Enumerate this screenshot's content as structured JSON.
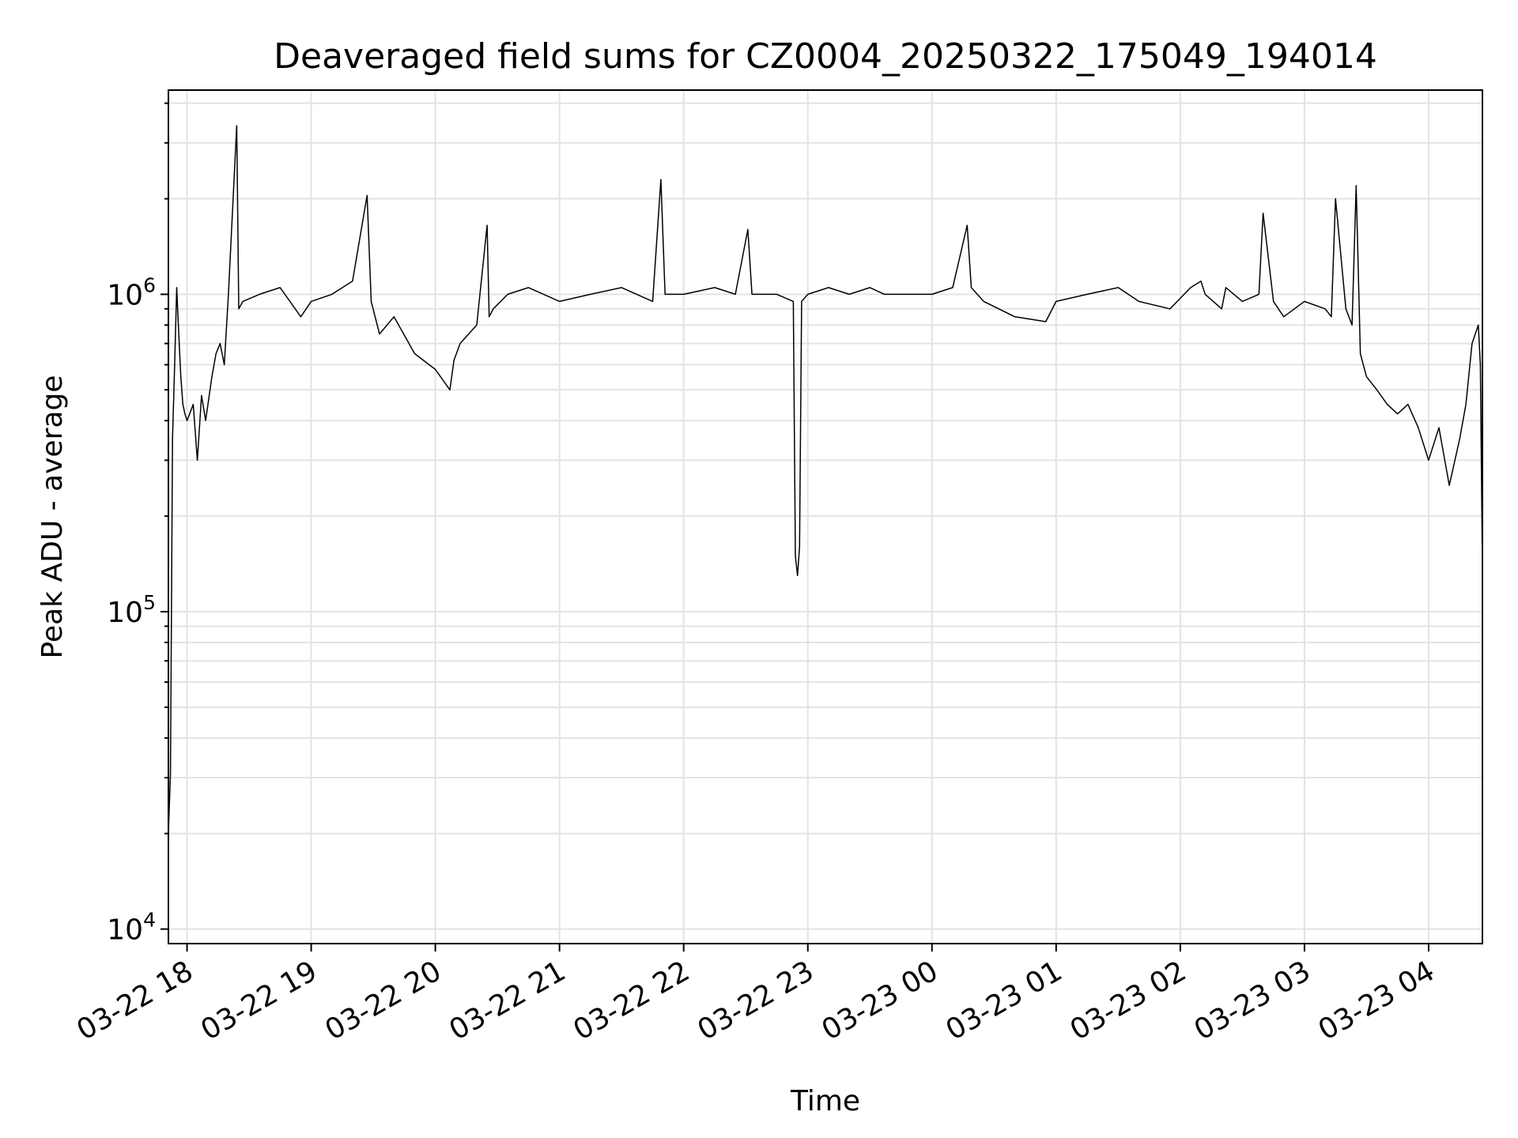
{
  "chart_data": {
    "type": "line",
    "title": "Deaveraged field sums for CZ0004_20250322_175049_194014",
    "xlabel": "Time",
    "ylabel": "Peak ADU - average",
    "xlim": [
      "2025-03-22 17:51",
      "2025-03-23 04:26"
    ],
    "ylim": [
      9000,
      4400000
    ],
    "y_scale": "log",
    "grid": true,
    "line_color": "#000000",
    "x_ticks": [
      {
        "t": "2025-03-22 18:00",
        "label": "03-22 18"
      },
      {
        "t": "2025-03-22 19:00",
        "label": "03-22 19"
      },
      {
        "t": "2025-03-22 20:00",
        "label": "03-22 20"
      },
      {
        "t": "2025-03-22 21:00",
        "label": "03-22 21"
      },
      {
        "t": "2025-03-22 22:00",
        "label": "03-22 22"
      },
      {
        "t": "2025-03-22 23:00",
        "label": "03-22 23"
      },
      {
        "t": "2025-03-23 00:00",
        "label": "03-23 00"
      },
      {
        "t": "2025-03-23 01:00",
        "label": "03-23 01"
      },
      {
        "t": "2025-03-23 02:00",
        "label": "03-23 02"
      },
      {
        "t": "2025-03-23 03:00",
        "label": "03-23 03"
      },
      {
        "t": "2025-03-23 04:00",
        "label": "03-23 04"
      }
    ],
    "y_ticks": [
      {
        "value": 10000,
        "base": "10",
        "exp": "4"
      },
      {
        "value": 100000,
        "base": "10",
        "exp": "5"
      },
      {
        "value": 1000000,
        "base": "10",
        "exp": "6"
      }
    ],
    "series": [
      {
        "x": [
          "2025-03-22 17:51",
          "2025-03-22 17:52",
          "2025-03-22 17:53",
          "2025-03-22 17:54",
          "2025-03-22 17:55",
          "2025-03-22 17:56",
          "2025-03-22 17:57",
          "2025-03-22 17:58",
          "2025-03-22 17:59",
          "2025-03-22 18:00",
          "2025-03-22 18:03",
          "2025-03-22 18:05",
          "2025-03-22 18:07",
          "2025-03-22 18:09",
          "2025-03-22 18:12",
          "2025-03-22 18:14",
          "2025-03-22 18:16",
          "2025-03-22 18:18",
          "2025-03-22 18:20",
          "2025-03-22 18:24",
          "2025-03-22 18:25",
          "2025-03-22 18:27",
          "2025-03-22 18:35",
          "2025-03-22 18:45",
          "2025-03-22 18:55",
          "2025-03-22 19:00",
          "2025-03-22 19:10",
          "2025-03-22 19:20",
          "2025-03-22 19:27",
          "2025-03-22 19:29",
          "2025-03-22 19:33",
          "2025-03-22 19:40",
          "2025-03-22 19:50",
          "2025-03-22 19:57",
          "2025-03-22 20:00",
          "2025-03-22 20:07",
          "2025-03-22 20:09",
          "2025-03-22 20:12",
          "2025-03-22 20:20",
          "2025-03-22 20:25",
          "2025-03-22 20:26",
          "2025-03-22 20:28",
          "2025-03-22 20:35",
          "2025-03-22 20:45",
          "2025-03-22 21:00",
          "2025-03-22 21:15",
          "2025-03-22 21:30",
          "2025-03-22 21:45",
          "2025-03-22 21:49",
          "2025-03-22 21:51",
          "2025-03-22 22:00",
          "2025-03-22 22:15",
          "2025-03-22 22:25",
          "2025-03-22 22:31",
          "2025-03-22 22:33",
          "2025-03-22 22:45",
          "2025-03-22 22:53",
          "2025-03-22 22:54",
          "2025-03-22 22:55",
          "2025-03-22 22:56",
          "2025-03-22 22:57",
          "2025-03-22 23:00",
          "2025-03-22 23:10",
          "2025-03-22 23:20",
          "2025-03-22 23:30",
          "2025-03-22 23:37",
          "2025-03-22 23:40",
          "2025-03-22 23:50",
          "2025-03-23 00:00",
          "2025-03-23 00:10",
          "2025-03-23 00:17",
          "2025-03-23 00:19",
          "2025-03-23 00:25",
          "2025-03-23 00:40",
          "2025-03-23 00:55",
          "2025-03-23 01:00",
          "2025-03-23 01:15",
          "2025-03-23 01:30",
          "2025-03-23 01:40",
          "2025-03-23 01:55",
          "2025-03-23 02:05",
          "2025-03-23 02:10",
          "2025-03-23 02:12",
          "2025-03-23 02:20",
          "2025-03-23 02:22",
          "2025-03-23 02:30",
          "2025-03-23 02:38",
          "2025-03-23 02:40",
          "2025-03-23 02:45",
          "2025-03-23 02:50",
          "2025-03-23 03:00",
          "2025-03-23 03:10",
          "2025-03-23 03:13",
          "2025-03-23 03:15",
          "2025-03-23 03:20",
          "2025-03-23 03:23",
          "2025-03-23 03:25",
          "2025-03-23 03:27",
          "2025-03-23 03:30",
          "2025-03-23 03:35",
          "2025-03-23 03:40",
          "2025-03-23 03:45",
          "2025-03-23 03:50",
          "2025-03-23 03:55",
          "2025-03-23 04:00",
          "2025-03-23 04:05",
          "2025-03-23 04:10",
          "2025-03-23 04:15",
          "2025-03-23 04:18",
          "2025-03-23 04:21",
          "2025-03-23 04:24",
          "2025-03-23 04:25",
          "2025-03-23 04:26"
        ],
        "y": [
          20000,
          31000,
          350000,
          600000,
          1050000,
          750000,
          550000,
          450000,
          420000,
          400000,
          450000,
          300000,
          480000,
          400000,
          550000,
          650000,
          700000,
          600000,
          1000000,
          3400000,
          900000,
          950000,
          1000000,
          1050000,
          850000,
          950000,
          1000000,
          1100000,
          2050000,
          950000,
          750000,
          850000,
          650000,
          600000,
          580000,
          500000,
          620000,
          700000,
          800000,
          1650000,
          850000,
          900000,
          1000000,
          1050000,
          950000,
          1000000,
          1050000,
          950000,
          2300000,
          1000000,
          1000000,
          1050000,
          1000000,
          1600000,
          1000000,
          1000000,
          950000,
          150000,
          130000,
          160000,
          950000,
          1000000,
          1050000,
          1000000,
          1050000,
          1000000,
          1000000,
          1000000,
          1000000,
          1050000,
          1650000,
          1050000,
          950000,
          850000,
          820000,
          950000,
          1000000,
          1050000,
          950000,
          900000,
          1050000,
          1100000,
          1000000,
          900000,
          1050000,
          950000,
          1000000,
          1800000,
          950000,
          850000,
          950000,
          900000,
          850000,
          2000000,
          900000,
          800000,
          2200000,
          650000,
          550000,
          500000,
          450000,
          420000,
          450000,
          380000,
          300000,
          380000,
          250000,
          350000,
          450000,
          700000,
          800000,
          600000,
          135000
        ]
      }
    ]
  }
}
